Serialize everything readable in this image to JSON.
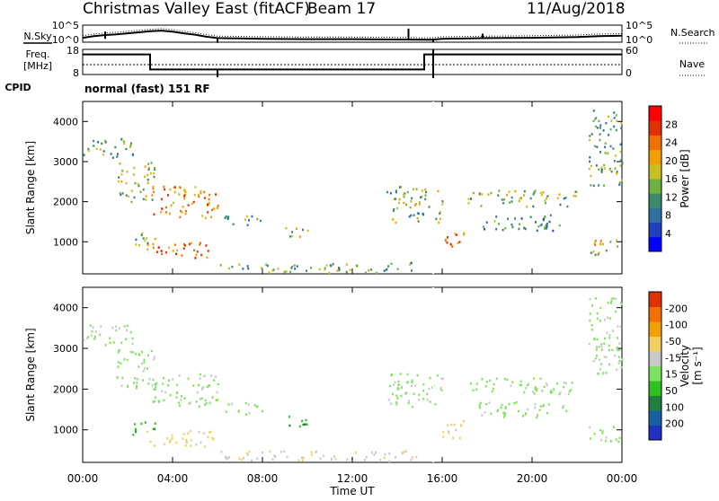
{
  "chart_data": {
    "type": "heatmap",
    "title": "Christmas Valley East (fitACF)",
    "beam": "Beam 17",
    "date": "11/Aug/2018",
    "xlabel": "Time UT",
    "x_ticks": [
      "00:00",
      "04:00",
      "08:00",
      "12:00",
      "16:00",
      "20:00",
      "00:00"
    ],
    "x_range_hours": [
      0,
      24
    ],
    "cpid": {
      "label": "CPID",
      "value": "normal (fast) 151 RF"
    },
    "noise_panel": {
      "left_label": "N.Sky",
      "right_label": "N.Search",
      "ticks_left": [
        "10^5",
        "10^0"
      ],
      "ticks_right": [
        "10^5",
        "10^0"
      ],
      "n_sky_series": [
        {
          "t": 0.0,
          "v": 1.3
        },
        {
          "t": 0.5,
          "v": 1.8
        },
        {
          "t": 1.0,
          "v": 2.1
        },
        {
          "t": 1.5,
          "v": 2.3
        },
        {
          "t": 2.0,
          "v": 2.6
        },
        {
          "t": 2.5,
          "v": 2.9
        },
        {
          "t": 3.0,
          "v": 3.2
        },
        {
          "t": 3.5,
          "v": 3.4
        },
        {
          "t": 4.0,
          "v": 3.1
        },
        {
          "t": 4.5,
          "v": 2.6
        },
        {
          "t": 5.0,
          "v": 2.2
        },
        {
          "t": 5.5,
          "v": 1.6
        },
        {
          "t": 6.0,
          "v": 1.2
        },
        {
          "t": 7.0,
          "v": 1.1
        },
        {
          "t": 8.0,
          "v": 1.0
        },
        {
          "t": 10.0,
          "v": 0.9
        },
        {
          "t": 12.0,
          "v": 0.9
        },
        {
          "t": 14.0,
          "v": 0.8
        },
        {
          "t": 15.5,
          "v": 0.7
        },
        {
          "t": 16.0,
          "v": 1.0
        },
        {
          "t": 18.0,
          "v": 1.2
        },
        {
          "t": 20.0,
          "v": 1.3
        },
        {
          "t": 22.0,
          "v": 1.5
        },
        {
          "t": 23.0,
          "v": 1.8
        },
        {
          "t": 24.0,
          "v": 1.9
        }
      ]
    },
    "freq_panel": {
      "left_label": "Freq.",
      "left_unit": "[MHz]",
      "right_label": "Nave",
      "ticks_left": [
        "18",
        "8"
      ],
      "ticks_right": [
        "60",
        "0"
      ],
      "freq_steps": [
        {
          "t0": 0.0,
          "t1": 3.0,
          "mhz": 16
        },
        {
          "t0": 3.0,
          "t1": 15.2,
          "mhz": 10
        },
        {
          "t0": 15.2,
          "t1": 15.5,
          "mhz": 16
        },
        {
          "t0": 15.5,
          "t1": 24.0,
          "mhz": 16
        }
      ]
    },
    "power_panel": {
      "ylabel": "Slant Range [km]",
      "y_ticks": [
        "1000",
        "2000",
        "3000",
        "4000"
      ],
      "y_range_km": [
        200,
        4500
      ],
      "colorbar": {
        "label": "Power [dB]",
        "ticks": [
          "4",
          "8",
          "12",
          "16",
          "20",
          "24",
          "28"
        ],
        "range": [
          0,
          30
        ],
        "colors": [
          "#0000ff",
          "#2040c0",
          "#3070a0",
          "#3c8c6c",
          "#70b040",
          "#c8c020",
          "#f0a000",
          "#f07000",
          "#e03000",
          "#ff0000"
        ]
      }
    },
    "velocity_panel": {
      "ylabel": "Slant Range [km]",
      "y_ticks": [
        "1000",
        "2000",
        "3000",
        "4000"
      ],
      "y_range_km": [
        200,
        4500
      ],
      "colorbar": {
        "label": "Velocity",
        "unit": "[m s⁻¹]",
        "ticks": [
          "200",
          "100",
          "50",
          "15",
          "-15",
          "-50",
          "-100",
          "-200"
        ],
        "colors": [
          "#2030c0",
          "#1860a0",
          "#208040",
          "#30c020",
          "#80e060",
          "#c8c8c8",
          "#f0d060",
          "#f0a000",
          "#f07000",
          "#e03000"
        ]
      }
    },
    "echo_regions": [
      {
        "name": "early-far-band",
        "t0": 0.0,
        "t1": 2.2,
        "r0": 3100,
        "r1": 3600,
        "power": 12,
        "vel": -10
      },
      {
        "name": "early-diagonal",
        "t0": 1.5,
        "t1": 3.2,
        "r0": 2000,
        "r1": 3000,
        "power": 14,
        "vel": -5
      },
      {
        "name": "morning-upper-block",
        "t0": 3.0,
        "t1": 6.0,
        "r0": 1600,
        "r1": 2400,
        "power": 22,
        "vel": -5
      },
      {
        "name": "morning-lower-block",
        "t0": 2.8,
        "t1": 5.8,
        "r0": 600,
        "r1": 1000,
        "power": 24,
        "vel": -60
      },
      {
        "name": "morning-green-band",
        "t0": 2.2,
        "t1": 3.2,
        "r0": 900,
        "r1": 1300,
        "power": 12,
        "vel": 40
      },
      {
        "name": "midmorning-patch",
        "t0": 6.3,
        "t1": 8.0,
        "r0": 1400,
        "r1": 1700,
        "power": 10,
        "vel": -5
      },
      {
        "name": "near-range-ground",
        "t0": 6.0,
        "t1": 15.0,
        "r0": 250,
        "r1": 500,
        "power": 12,
        "vel": -40
      },
      {
        "name": "noon-patch",
        "t0": 9.0,
        "t1": 10.0,
        "r0": 1100,
        "r1": 1400,
        "power": 12,
        "vel": 40
      },
      {
        "name": "afternoon-diagonal",
        "t0": 13.5,
        "t1": 16.0,
        "r0": 1500,
        "r1": 2400,
        "power": 14,
        "vel": -10
      },
      {
        "name": "late-far-arc",
        "t0": 16.0,
        "t1": 17.0,
        "r0": 800,
        "r1": 1300,
        "power": 24,
        "vel": -50
      },
      {
        "name": "evening-band-upper",
        "t0": 17.0,
        "t1": 22.0,
        "r0": 1900,
        "r1": 2300,
        "power": 14,
        "vel": -5
      },
      {
        "name": "evening-band-lower",
        "t0": 17.5,
        "t1": 21.5,
        "r0": 1300,
        "r1": 1700,
        "power": 10,
        "vel": -5
      },
      {
        "name": "dusk-rise",
        "t0": 22.5,
        "t1": 24.0,
        "r0": 2400,
        "r1": 4300,
        "power": 12,
        "vel": -10
      },
      {
        "name": "dusk-near",
        "t0": 22.5,
        "t1": 24.0,
        "r0": 700,
        "r1": 1100,
        "power": 16,
        "vel": -10
      }
    ]
  }
}
